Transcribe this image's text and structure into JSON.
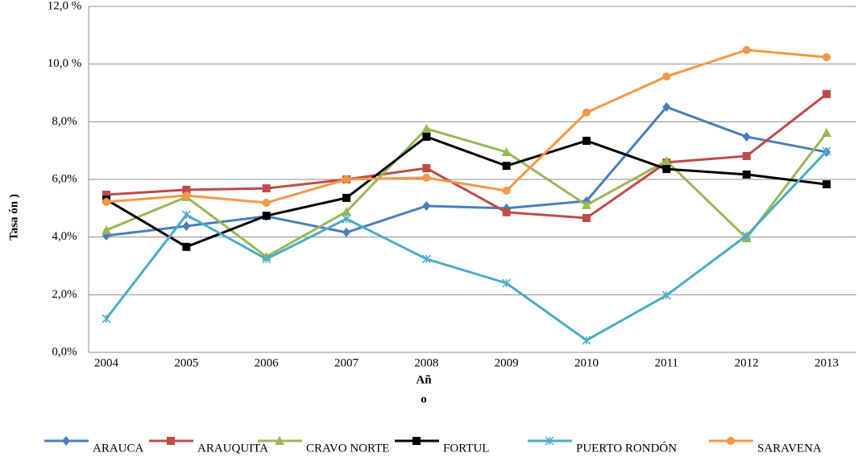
{
  "chart_data": {
    "type": "line",
    "y_label": "Tasa ón )",
    "x_label": [
      "Añ",
      "o"
    ],
    "categories": [
      "2004",
      "2005",
      "2006",
      "2007",
      "2008",
      "2009",
      "2010",
      "2011",
      "2012",
      "2013"
    ],
    "ylim": [
      0,
      12
    ],
    "yticks": [
      {
        "value": 0,
        "label": "0,0%"
      },
      {
        "value": 2,
        "label": "2,0%"
      },
      {
        "value": 4,
        "label": "4,0%"
      },
      {
        "value": 6,
        "label": "6,0%"
      },
      {
        "value": 8,
        "label": "8,0%"
      },
      {
        "value": 10,
        "label": "10,0 %"
      },
      {
        "value": 12,
        "label": "12,0 %"
      }
    ],
    "grid": true,
    "legend": "bottom",
    "series": [
      {
        "name": "ARAUCA",
        "color": "#4a7ebb",
        "marker": "diamond",
        "values": [
          4.05,
          4.38,
          4.72,
          4.16,
          5.08,
          5.0,
          5.25,
          8.51,
          7.48,
          6.95
        ]
      },
      {
        "name": "ARAUQUITA",
        "color": "#be4b48",
        "marker": "square",
        "values": [
          5.47,
          5.64,
          5.69,
          6.0,
          6.39,
          4.86,
          4.66,
          6.59,
          6.81,
          8.96
        ]
      },
      {
        "name": "CRAVO NORTE",
        "color": "#98b954",
        "marker": "triangle",
        "values": [
          4.24,
          5.39,
          3.32,
          4.88,
          7.76,
          6.95,
          5.11,
          6.64,
          3.96,
          7.62
        ]
      },
      {
        "name": "FORTUL",
        "color": "#000000",
        "marker": "square",
        "values": [
          5.3,
          3.66,
          4.74,
          5.36,
          7.48,
          6.47,
          7.34,
          6.36,
          6.17,
          5.83
        ]
      },
      {
        "name": "PUERTO RONDÓN",
        "color": "#4bacc6",
        "marker": "cross",
        "values": [
          1.17,
          4.77,
          3.24,
          4.63,
          3.24,
          2.4,
          0.42,
          1.98,
          4.05,
          6.98
        ]
      },
      {
        "name": "SARAVENA",
        "color": "#f79646",
        "marker": "circle",
        "values": [
          5.22,
          5.44,
          5.19,
          6.0,
          6.06,
          5.61,
          8.32,
          9.57,
          10.49,
          10.24
        ]
      }
    ]
  }
}
